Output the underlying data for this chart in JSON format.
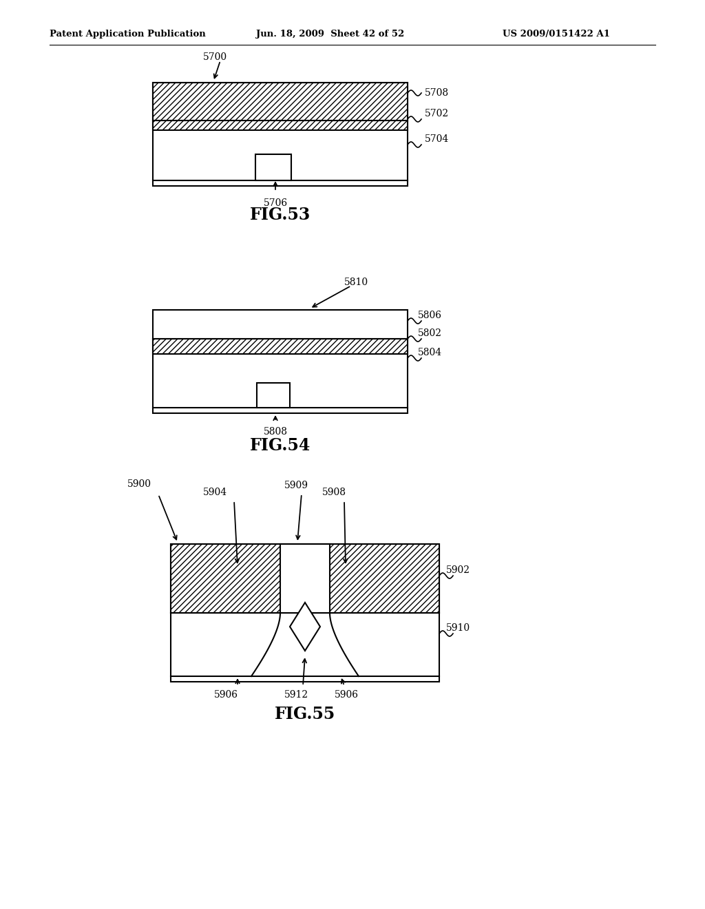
{
  "header_left": "Patent Application Publication",
  "header_mid": "Jun. 18, 2009  Sheet 42 of 52",
  "header_right": "US 2009/0151422 A1",
  "fig53_label": "FIG.53",
  "fig54_label": "FIG.54",
  "fig55_label": "FIG.55",
  "bg_color": "#ffffff",
  "line_color": "#000000"
}
